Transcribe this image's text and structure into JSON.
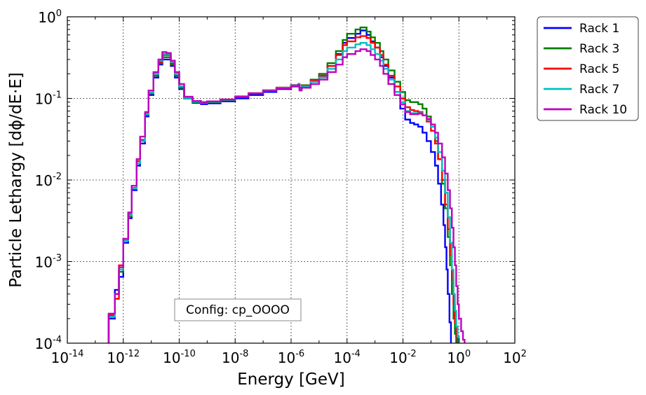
{
  "chart_data": {
    "type": "line",
    "title": "",
    "xlabel": "Energy [GeV]",
    "ylabel": "Particle Lethargy [dϕ/dE·E]",
    "x_scale": "log",
    "y_scale": "log",
    "xlim": [
      1e-14,
      100
    ],
    "ylim": [
      0.0001,
      1
    ],
    "grid": true,
    "legend_position": "outside-top-right",
    "x_ticks": [
      {
        "base": "10",
        "exp": "-14",
        "value": 1e-14
      },
      {
        "base": "10",
        "exp": "-12",
        "value": 1e-12
      },
      {
        "base": "10",
        "exp": "-10",
        "value": 1e-10
      },
      {
        "base": "10",
        "exp": "-8",
        "value": 1e-08
      },
      {
        "base": "10",
        "exp": "-6",
        "value": 1e-06
      },
      {
        "base": "10",
        "exp": "-4",
        "value": 0.0001
      },
      {
        "base": "10",
        "exp": "-2",
        "value": 0.01
      },
      {
        "base": "10",
        "exp": "0",
        "value": 1
      },
      {
        "base": "10",
        "exp": "2",
        "value": 100
      }
    ],
    "y_ticks": [
      {
        "base": "10",
        "exp": "-4",
        "value": 0.0001
      },
      {
        "base": "10",
        "exp": "-3",
        "value": 0.001
      },
      {
        "base": "10",
        "exp": "-2",
        "value": 0.01
      },
      {
        "base": "10",
        "exp": "-1",
        "value": 0.1
      },
      {
        "base": "10",
        "exp": "0",
        "value": 1
      }
    ],
    "annotation": "Config: cp_OOOO",
    "series": [
      {
        "name": "Rack 1",
        "color": "#0000ff",
        "x": [
          3e-13,
          5e-13,
          7e-13,
          1e-12,
          1.5e-12,
          2e-12,
          3e-12,
          4e-12,
          6e-12,
          8e-12,
          1.2e-11,
          1.8e-11,
          2.5e-11,
          3.5e-11,
          5e-11,
          7e-11,
          1e-10,
          1.5e-10,
          3e-10,
          6e-10,
          1e-09,
          3e-09,
          1e-08,
          3e-08,
          1e-07,
          3e-07,
          1e-06,
          1.8e-06,
          2e-06,
          2.4e-06,
          5e-06,
          1e-05,
          2e-05,
          4e-05,
          7e-05,
          0.0001,
          0.0002,
          0.0003,
          0.0005,
          0.0007,
          0.001,
          0.0015,
          0.002,
          0.003,
          0.005,
          0.008,
          0.012,
          0.018,
          0.025,
          0.035,
          0.05,
          0.07,
          0.1,
          0.14,
          0.18,
          0.23,
          0.28,
          0.32,
          0.36,
          0.4,
          0.46,
          0.52
        ],
        "y": [
          0.0002,
          0.00045,
          0.00065,
          0.0017,
          0.0034,
          0.0075,
          0.015,
          0.028,
          0.06,
          0.11,
          0.18,
          0.26,
          0.3,
          0.3,
          0.25,
          0.18,
          0.13,
          0.1,
          0.088,
          0.085,
          0.087,
          0.092,
          0.1,
          0.11,
          0.12,
          0.13,
          0.14,
          0.145,
          0.13,
          0.14,
          0.16,
          0.19,
          0.25,
          0.35,
          0.48,
          0.55,
          0.62,
          0.68,
          0.6,
          0.5,
          0.42,
          0.32,
          0.25,
          0.18,
          0.12,
          0.075,
          0.055,
          0.05,
          0.048,
          0.045,
          0.038,
          0.03,
          0.022,
          0.015,
          0.009,
          0.005,
          0.0028,
          0.0015,
          0.0008,
          0.0004,
          0.00018,
          0.0001
        ]
      },
      {
        "name": "Rack 3",
        "color": "#007f00",
        "x": [
          3e-13,
          5e-13,
          7e-13,
          1e-12,
          1.5e-12,
          2e-12,
          3e-12,
          4e-12,
          6e-12,
          8e-12,
          1.2e-11,
          1.8e-11,
          2.5e-11,
          3.5e-11,
          5e-11,
          7e-11,
          1e-10,
          1.5e-10,
          3e-10,
          6e-10,
          1e-09,
          3e-09,
          1e-08,
          3e-08,
          1e-07,
          3e-07,
          1e-06,
          1.8e-06,
          2e-06,
          2.4e-06,
          5e-06,
          1e-05,
          2e-05,
          4e-05,
          7e-05,
          0.0001,
          0.0002,
          0.0003,
          0.0005,
          0.0007,
          0.001,
          0.0015,
          0.002,
          0.003,
          0.005,
          0.008,
          0.012,
          0.018,
          0.025,
          0.035,
          0.05,
          0.07,
          0.1,
          0.14,
          0.18,
          0.25,
          0.32,
          0.4,
          0.48,
          0.56,
          0.64,
          0.72,
          0.8
        ],
        "y": [
          0.00022,
          0.0004,
          0.00075,
          0.0018,
          0.0036,
          0.0078,
          0.016,
          0.03,
          0.063,
          0.115,
          0.19,
          0.27,
          0.32,
          0.32,
          0.26,
          0.19,
          0.135,
          0.1,
          0.09,
          0.088,
          0.09,
          0.095,
          0.105,
          0.115,
          0.125,
          0.135,
          0.145,
          0.15,
          0.135,
          0.145,
          0.17,
          0.2,
          0.27,
          0.38,
          0.52,
          0.62,
          0.7,
          0.74,
          0.66,
          0.56,
          0.48,
          0.38,
          0.3,
          0.22,
          0.16,
          0.12,
          0.095,
          0.09,
          0.09,
          0.085,
          0.075,
          0.06,
          0.045,
          0.03,
          0.018,
          0.009,
          0.0045,
          0.002,
          0.0009,
          0.0004,
          0.0002,
          0.00013,
          0.0001
        ]
      },
      {
        "name": "Rack 5",
        "color": "#ff0000",
        "x": [
          3e-13,
          5e-13,
          7e-13,
          1e-12,
          1.5e-12,
          2e-12,
          3e-12,
          4e-12,
          6e-12,
          8e-12,
          1.2e-11,
          1.8e-11,
          2.5e-11,
          3.5e-11,
          5e-11,
          7e-11,
          1e-10,
          1.5e-10,
          3e-10,
          6e-10,
          1e-09,
          3e-09,
          1e-08,
          3e-08,
          1e-07,
          3e-07,
          1e-06,
          1.8e-06,
          2e-06,
          2.4e-06,
          5e-06,
          1e-05,
          2e-05,
          4e-05,
          7e-05,
          0.0001,
          0.0002,
          0.0003,
          0.0005,
          0.0007,
          0.001,
          0.0015,
          0.002,
          0.003,
          0.005,
          0.008,
          0.012,
          0.018,
          0.025,
          0.035,
          0.05,
          0.07,
          0.1,
          0.14,
          0.18,
          0.25,
          0.32,
          0.4,
          0.48,
          0.56,
          0.64,
          0.72,
          0.8,
          0.9
        ],
        "y": [
          0.00022,
          0.00035,
          0.0009,
          0.0019,
          0.0038,
          0.008,
          0.017,
          0.031,
          0.065,
          0.118,
          0.2,
          0.28,
          0.34,
          0.34,
          0.27,
          0.2,
          0.14,
          0.102,
          0.092,
          0.09,
          0.092,
          0.097,
          0.106,
          0.116,
          0.126,
          0.136,
          0.146,
          0.15,
          0.132,
          0.142,
          0.165,
          0.19,
          0.25,
          0.34,
          0.45,
          0.5,
          0.56,
          0.58,
          0.55,
          0.48,
          0.42,
          0.34,
          0.26,
          0.19,
          0.14,
          0.1,
          0.078,
          0.072,
          0.07,
          0.068,
          0.062,
          0.052,
          0.04,
          0.028,
          0.018,
          0.01,
          0.005,
          0.0025,
          0.0012,
          0.0006,
          0.0003,
          0.00018,
          0.00012,
          0.0001
        ]
      },
      {
        "name": "Rack 7",
        "color": "#00bfbf",
        "x": [
          3e-13,
          5e-13,
          7e-13,
          1e-12,
          1.5e-12,
          2e-12,
          3e-12,
          4e-12,
          6e-12,
          8e-12,
          1.2e-11,
          1.8e-11,
          2.5e-11,
          3.5e-11,
          5e-11,
          7e-11,
          1e-10,
          1.5e-10,
          3e-10,
          6e-10,
          1e-09,
          3e-09,
          1e-08,
          3e-08,
          1e-07,
          3e-07,
          1e-06,
          1.8e-06,
          2e-06,
          2.4e-06,
          5e-06,
          1e-05,
          2e-05,
          4e-05,
          7e-05,
          0.0001,
          0.0002,
          0.0003,
          0.0005,
          0.0007,
          0.001,
          0.0015,
          0.002,
          0.003,
          0.005,
          0.008,
          0.012,
          0.018,
          0.025,
          0.035,
          0.05,
          0.07,
          0.1,
          0.14,
          0.18,
          0.25,
          0.32,
          0.4,
          0.48,
          0.56,
          0.64,
          0.72,
          0.8,
          0.9,
          1.0
        ],
        "y": [
          0.00021,
          0.0004,
          0.0008,
          0.0018,
          0.0037,
          0.0079,
          0.016,
          0.03,
          0.064,
          0.117,
          0.2,
          0.29,
          0.35,
          0.35,
          0.28,
          0.2,
          0.14,
          0.101,
          0.091,
          0.089,
          0.091,
          0.096,
          0.105,
          0.115,
          0.125,
          0.135,
          0.145,
          0.15,
          0.13,
          0.14,
          0.16,
          0.18,
          0.23,
          0.3,
          0.38,
          0.42,
          0.46,
          0.48,
          0.45,
          0.4,
          0.35,
          0.29,
          0.23,
          0.17,
          0.12,
          0.09,
          0.07,
          0.066,
          0.066,
          0.066,
          0.062,
          0.055,
          0.045,
          0.033,
          0.022,
          0.013,
          0.007,
          0.0035,
          0.0017,
          0.0008,
          0.0004,
          0.00025,
          0.00016,
          0.00012,
          0.0001
        ]
      },
      {
        "name": "Rack 10",
        "color": "#bf00bf",
        "x": [
          3e-13,
          5e-13,
          7e-13,
          1e-12,
          1.5e-12,
          2e-12,
          3e-12,
          4e-12,
          6e-12,
          8e-12,
          1.2e-11,
          1.8e-11,
          2.5e-11,
          3.5e-11,
          5e-11,
          7e-11,
          1e-10,
          1.5e-10,
          3e-10,
          6e-10,
          1e-09,
          3e-09,
          1e-08,
          3e-08,
          1e-07,
          3e-07,
          1e-06,
          1.8e-06,
          2e-06,
          2.4e-06,
          5e-06,
          1e-05,
          2e-05,
          4e-05,
          7e-05,
          0.0001,
          0.0002,
          0.0003,
          0.0005,
          0.0007,
          0.001,
          0.0015,
          0.002,
          0.003,
          0.005,
          0.008,
          0.012,
          0.018,
          0.025,
          0.035,
          0.05,
          0.07,
          0.1,
          0.14,
          0.18,
          0.25,
          0.32,
          0.4,
          0.48,
          0.56,
          0.64,
          0.72,
          0.8,
          0.9,
          1.0,
          1.2,
          1.4,
          1.6
        ],
        "y": [
          0.00023,
          0.0004,
          0.00085,
          0.0019,
          0.004,
          0.0085,
          0.018,
          0.034,
          0.068,
          0.125,
          0.21,
          0.3,
          0.37,
          0.36,
          0.29,
          0.21,
          0.15,
          0.105,
          0.093,
          0.09,
          0.092,
          0.097,
          0.105,
          0.115,
          0.124,
          0.133,
          0.142,
          0.146,
          0.125,
          0.135,
          0.15,
          0.17,
          0.21,
          0.26,
          0.32,
          0.35,
          0.38,
          0.4,
          0.38,
          0.34,
          0.3,
          0.25,
          0.2,
          0.15,
          0.11,
          0.085,
          0.068,
          0.064,
          0.064,
          0.065,
          0.062,
          0.056,
          0.048,
          0.038,
          0.028,
          0.019,
          0.012,
          0.0075,
          0.0045,
          0.0026,
          0.0015,
          0.0009,
          0.0005,
          0.0003,
          0.0002,
          0.00014,
          0.00011,
          0.0001
        ]
      }
    ]
  }
}
